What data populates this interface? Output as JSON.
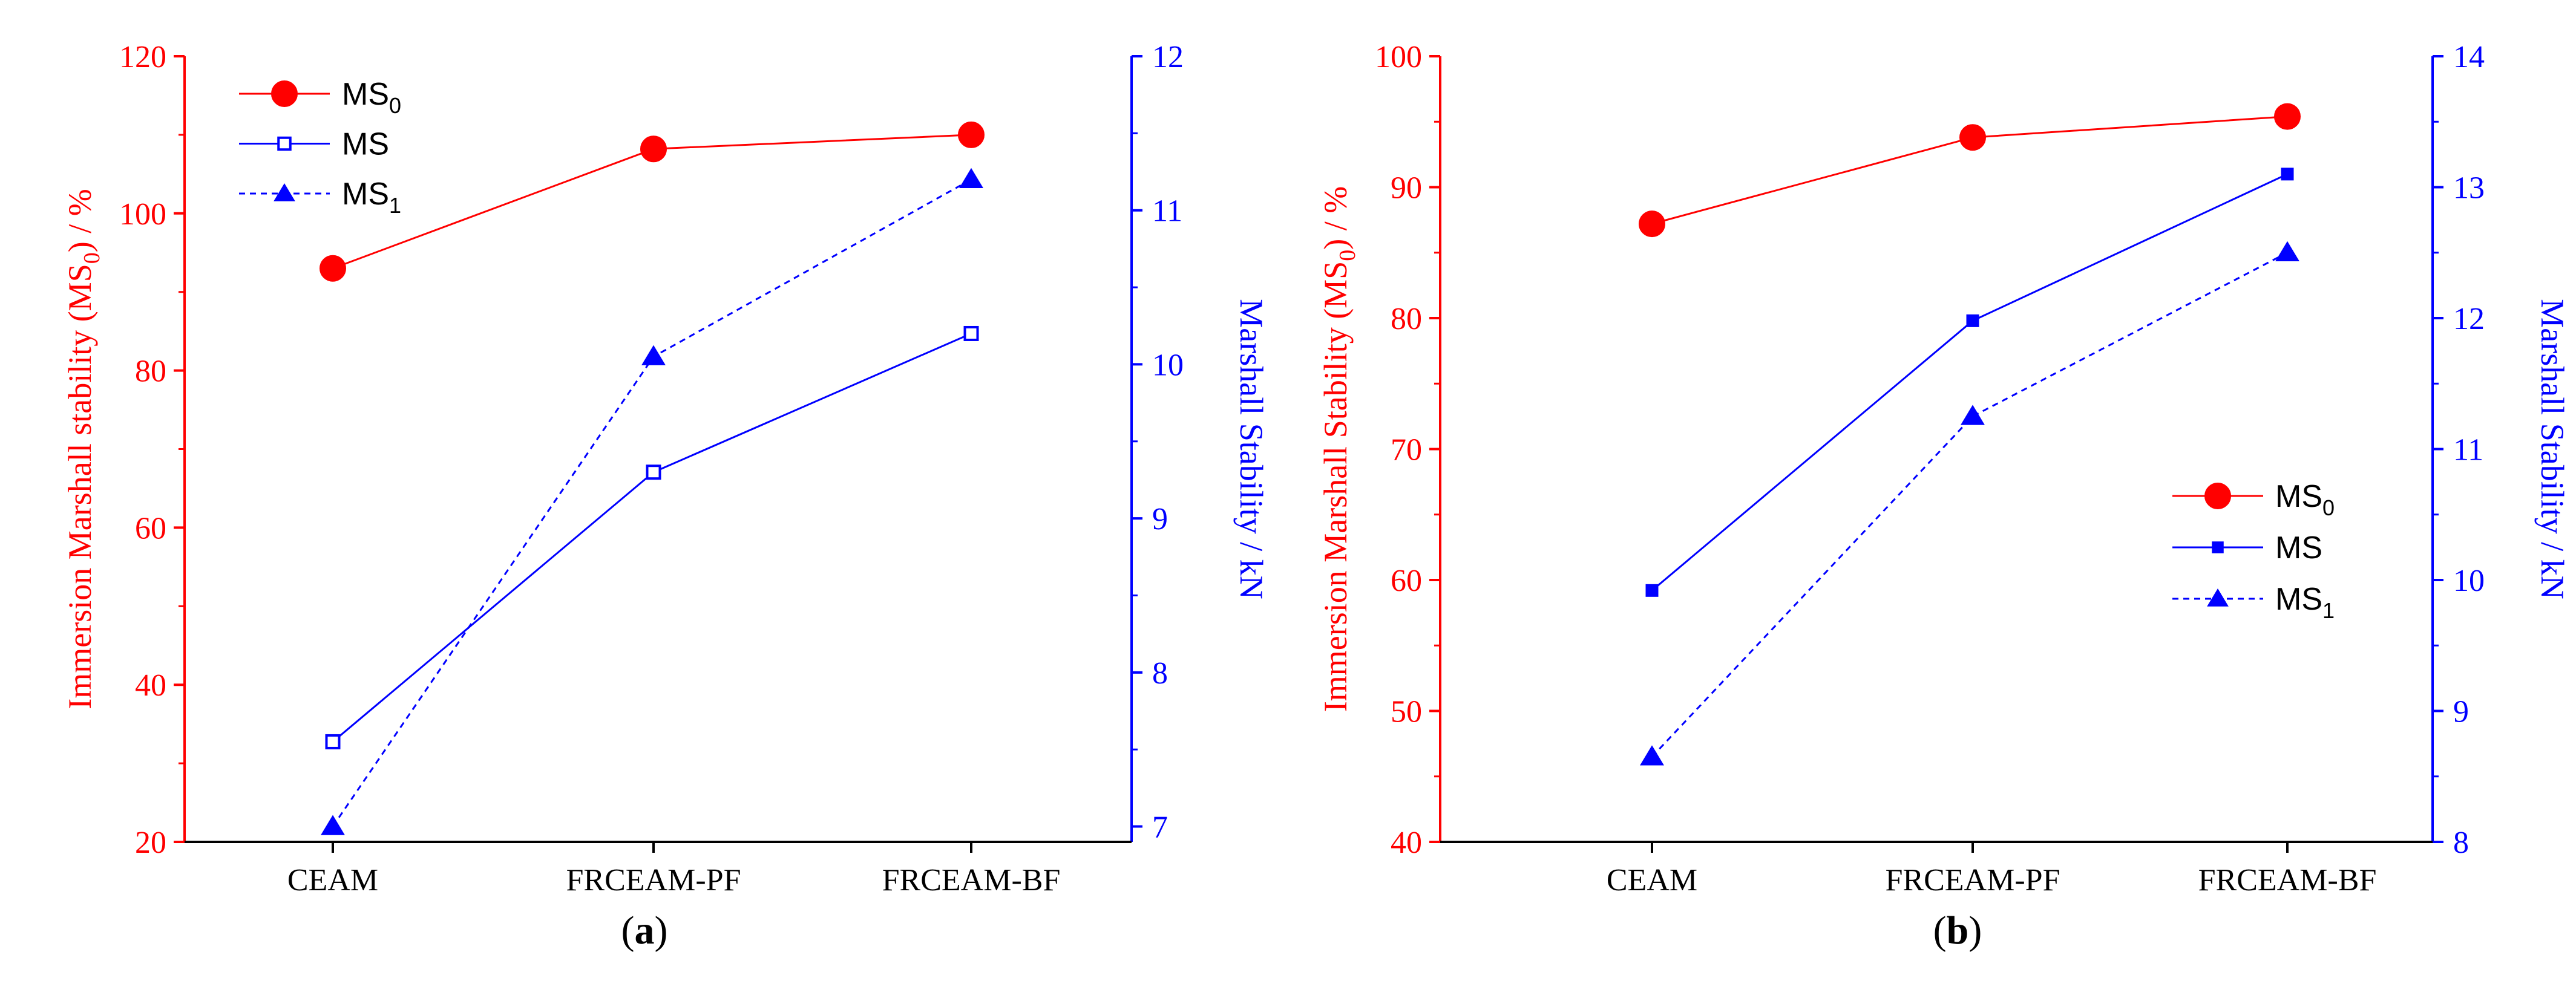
{
  "chart_data": [
    {
      "type": "line",
      "panel_label": "a",
      "categories": [
        "CEAM",
        "FRCEAM-PF",
        "FRCEAM-BF"
      ],
      "ylabel_left_pre": "Immersion Marshall stability (MS",
      "ylabel_left_sub": "0",
      "ylabel_left_post": ") / %",
      "ylabel_right": "Marshall Stability / kN",
      "ylim_left": [
        20,
        120
      ],
      "yticks_left": [
        20,
        40,
        60,
        80,
        100,
        120
      ],
      "ylim_right": [
        6.9,
        12
      ],
      "yticks_right": [
        7,
        8,
        9,
        10,
        11,
        12
      ],
      "legend_position": "top-left",
      "series": [
        {
          "name": "MS",
          "sub": "0",
          "axis": "left",
          "values": [
            93,
            108.2,
            110
          ],
          "color": "#ff0000",
          "marker": "circle",
          "dash": false
        },
        {
          "name": "MS",
          "sub": "",
          "axis": "right",
          "values": [
            7.55,
            9.3,
            10.2
          ],
          "color": "#0000ff",
          "marker": "square-open",
          "dash": false
        },
        {
          "name": "MS",
          "sub": "1",
          "axis": "right",
          "values": [
            7.0,
            10.05,
            11.2
          ],
          "color": "#0000ff",
          "marker": "triangle",
          "dash": true
        }
      ]
    },
    {
      "type": "line",
      "panel_label": "b",
      "categories": [
        "CEAM",
        "FRCEAM-PF",
        "FRCEAM-BF"
      ],
      "ylabel_left_pre": "Immersion Marshall Stability (MS",
      "ylabel_left_sub": "0",
      "ylabel_left_post": ") / %",
      "ylabel_right": "Marshall Stability / kN",
      "ylim_left": [
        40,
        100
      ],
      "yticks_left": [
        40,
        50,
        60,
        70,
        80,
        90,
        100
      ],
      "ylim_right": [
        8,
        14
      ],
      "yticks_right": [
        8,
        9,
        10,
        11,
        12,
        13,
        14
      ],
      "legend_position": "middle-right",
      "series": [
        {
          "name": "MS",
          "sub": "0",
          "axis": "left",
          "values": [
            87.2,
            93.8,
            95.4
          ],
          "color": "#ff0000",
          "marker": "circle",
          "dash": false
        },
        {
          "name": "MS",
          "sub": "",
          "axis": "right",
          "values": [
            9.92,
            11.98,
            13.1
          ],
          "color": "#0000ff",
          "marker": "square",
          "dash": false
        },
        {
          "name": "MS",
          "sub": "1",
          "axis": "right",
          "values": [
            8.65,
            11.25,
            12.5
          ],
          "color": "#0000ff",
          "marker": "triangle",
          "dash": true
        }
      ]
    }
  ]
}
